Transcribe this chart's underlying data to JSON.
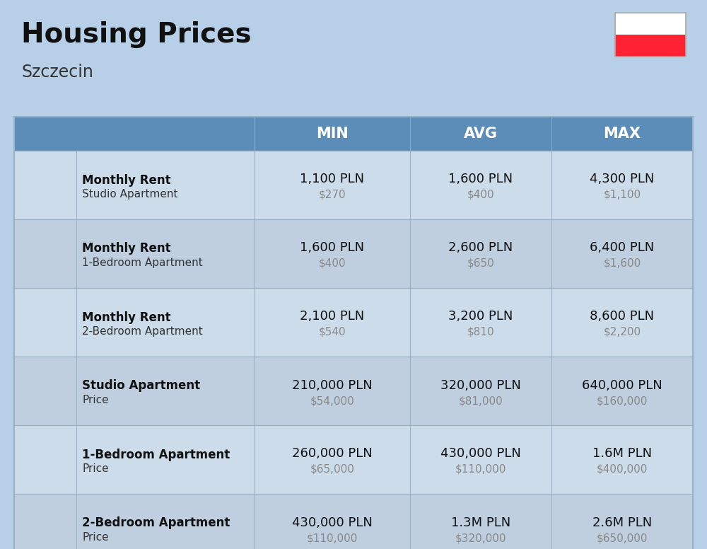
{
  "title": "Housing Prices",
  "subtitle": "Szczecin",
  "bg_color": "#b8cfe8",
  "header_color": "#5b8db8",
  "header_text_color": "#ffffff",
  "row_colors": [
    "#cddcea",
    "#bfcfe0"
  ],
  "separator_color": "#9ab0c4",
  "header_labels": [
    "MIN",
    "AVG",
    "MAX"
  ],
  "title_fontsize": 28,
  "subtitle_fontsize": 17,
  "header_fontsize": 15,
  "pln_fontsize": 13,
  "usd_fontsize": 11,
  "bold_fontsize": 12,
  "sub_fontsize": 11,
  "rows": [
    {
      "bold_text": "Monthly Rent",
      "sub_text": "Studio Apartment",
      "min_pln": "1,100 PLN",
      "min_usd": "$270",
      "avg_pln": "1,600 PLN",
      "avg_usd": "$400",
      "max_pln": "4,300 PLN",
      "max_usd": "$1,100",
      "icon_type": "blue_studio"
    },
    {
      "bold_text": "Monthly Rent",
      "sub_text": "1-Bedroom Apartment",
      "min_pln": "1,600 PLN",
      "min_usd": "$400",
      "avg_pln": "2,600 PLN",
      "avg_usd": "$650",
      "max_pln": "6,400 PLN",
      "max_usd": "$1,600",
      "icon_type": "orange_1bed"
    },
    {
      "bold_text": "Monthly Rent",
      "sub_text": "2-Bedroom Apartment",
      "min_pln": "2,100 PLN",
      "min_usd": "$540",
      "avg_pln": "3,200 PLN",
      "avg_usd": "$810",
      "max_pln": "8,600 PLN",
      "max_usd": "$2,200",
      "icon_type": "beige_2bed"
    },
    {
      "bold_text": "Studio Apartment",
      "sub_text": "Price",
      "min_pln": "210,000 PLN",
      "min_usd": "$54,000",
      "avg_pln": "320,000 PLN",
      "avg_usd": "$81,000",
      "max_pln": "640,000 PLN",
      "max_usd": "$160,000",
      "icon_type": "blue_studio"
    },
    {
      "bold_text": "1-Bedroom Apartment",
      "sub_text": "Price",
      "min_pln": "260,000 PLN",
      "min_usd": "$65,000",
      "avg_pln": "430,000 PLN",
      "avg_usd": "$110,000",
      "max_pln": "1.6M PLN",
      "max_usd": "$400,000",
      "icon_type": "orange_1bed"
    },
    {
      "bold_text": "2-Bedroom Apartment",
      "sub_text": "Price",
      "min_pln": "430,000 PLN",
      "min_usd": "$110,000",
      "avg_pln": "1.3M PLN",
      "avg_usd": "$320,000",
      "max_pln": "2.6M PLN",
      "max_usd": "$650,000",
      "icon_type": "beige_2bed"
    }
  ],
  "flag_white": "#ffffff",
  "flag_red": "#FF2233"
}
